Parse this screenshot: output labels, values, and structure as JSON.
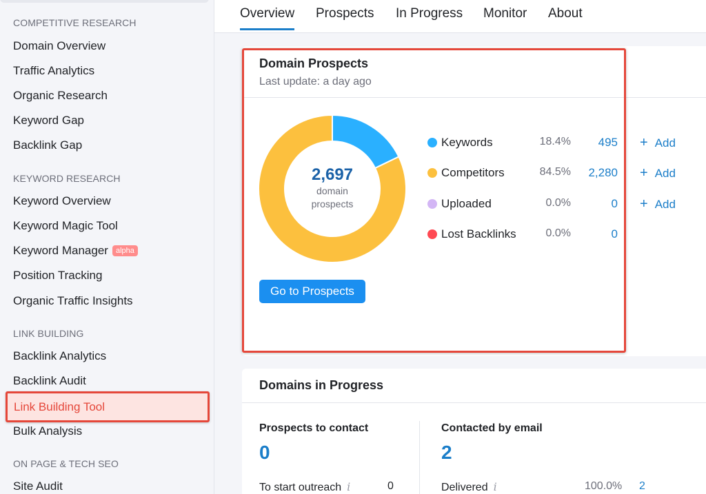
{
  "sidebar": {
    "sections": [
      {
        "heading": "COMPETITIVE RESEARCH",
        "items": [
          "Domain Overview",
          "Traffic Analytics",
          "Organic Research",
          "Keyword Gap",
          "Backlink Gap"
        ]
      },
      {
        "heading": "KEYWORD RESEARCH",
        "items": [
          "Keyword Overview",
          "Keyword Magic Tool",
          "Keyword Manager",
          "Position Tracking",
          "Organic Traffic Insights"
        ]
      },
      {
        "heading": "LINK BUILDING",
        "items": [
          "Backlink Analytics",
          "Backlink Audit",
          "Link Building Tool",
          "Bulk Analysis"
        ]
      },
      {
        "heading": "ON PAGE & TECH SEO",
        "items": [
          "Site Audit"
        ]
      }
    ],
    "badge_alpha": "alpha",
    "active_item": "Link Building Tool"
  },
  "tabs": [
    "Overview",
    "Prospects",
    "In Progress",
    "Monitor",
    "About"
  ],
  "prospects": {
    "title": "Domain Prospects",
    "last_update": "Last update: a day ago",
    "total": "2,697",
    "total_label_1": "domain",
    "total_label_2": "prospects",
    "rows": [
      {
        "label": "Keywords",
        "pct": "18.4%",
        "count": "495",
        "add": "Add",
        "color": "#2ab0ff"
      },
      {
        "label": "Competitors",
        "pct": "84.5%",
        "count": "2,280",
        "add": "Add",
        "color": "#fcc03e"
      },
      {
        "label": "Uploaded",
        "pct": "0.0%",
        "count": "0",
        "add": "Add",
        "color": "#d3b6f5"
      },
      {
        "label": "Lost Backlinks",
        "pct": "0.0%",
        "count": "0",
        "color": "#ff4953"
      }
    ],
    "button": "Go to Prospects"
  },
  "chart_data": {
    "type": "pie",
    "categories": [
      "Keywords",
      "Competitors"
    ],
    "values": [
      495,
      2280
    ],
    "colors": [
      "#2ab0ff",
      "#fcc03e"
    ],
    "title": "",
    "xlabel": "",
    "ylabel": ""
  },
  "progress": {
    "title": "Domains in Progress",
    "left": {
      "label": "Prospects to contact",
      "value": "0",
      "row_label": "To start outreach",
      "row_value": "0"
    },
    "right": {
      "label": "Contacted by email",
      "value": "2",
      "row_label": "Delivered",
      "row_pct": "100.0%",
      "row_value": "2"
    }
  }
}
